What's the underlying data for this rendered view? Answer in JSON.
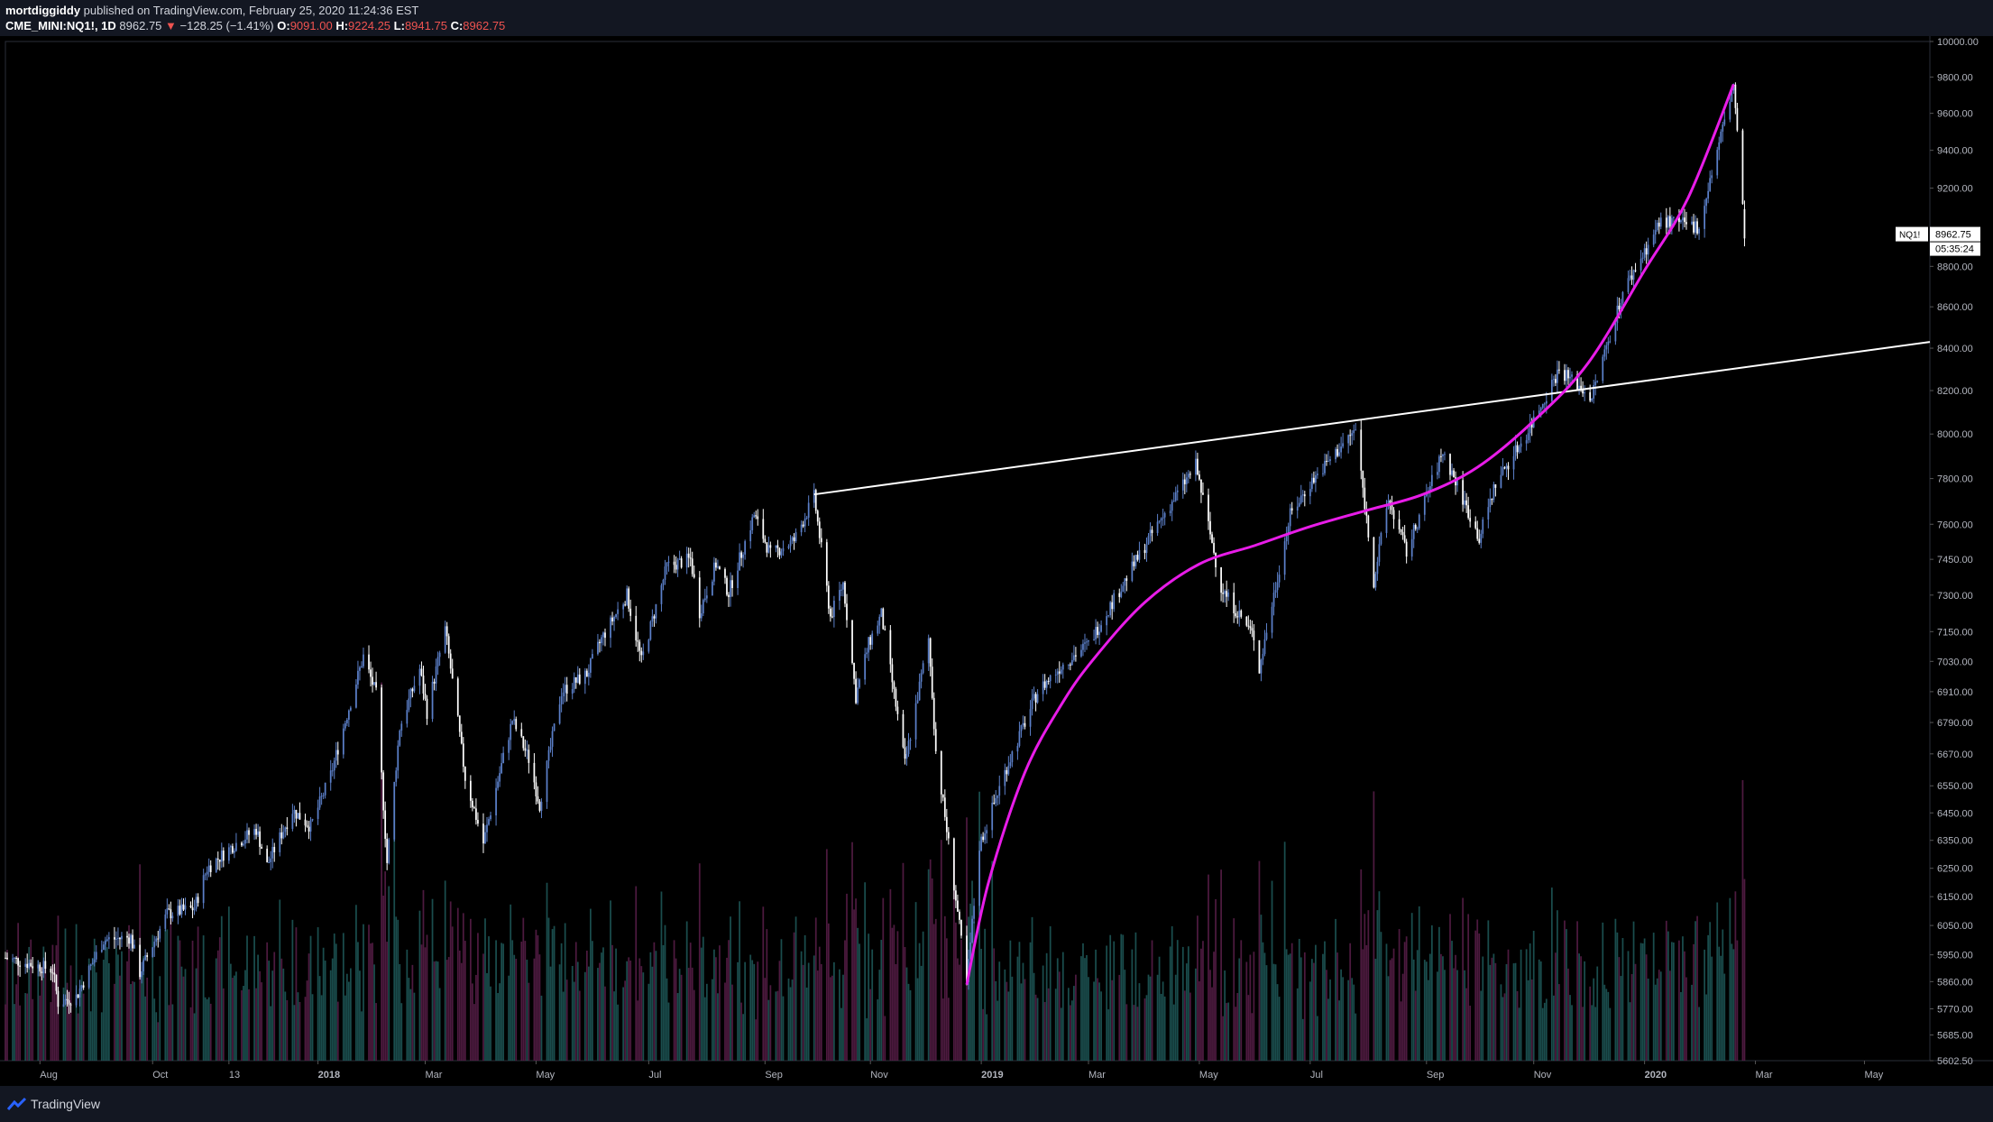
{
  "header": {
    "author": "mortdiggiddy",
    "published_text": "published on TradingView.com, February 25, 2020 11:24:36 EST",
    "symbol": "CME_MINI:NQ1!, 1D",
    "last": "8962.75",
    "down_arrow": "▼",
    "change": "−128.25 (−1.41%)",
    "open_label": "O:",
    "open": "9091.00",
    "high_label": "H:",
    "high": "9224.25",
    "low_label": "L:",
    "low": "8941.75",
    "close_label": "C:",
    "close": "8962.75"
  },
  "footer": {
    "brand": "TradingView",
    "logo_icon": "tradingview-logo-icon"
  },
  "price_marker": {
    "symbol": "NQ1!",
    "price": "8962.75",
    "countdown": "05:35:24"
  },
  "colors": {
    "background": "#000000",
    "candle_up": "#5b7fc8",
    "candle_down": "#ffffff",
    "trendline": "#ffffff",
    "curve": "#e81ce8",
    "volume_up": "#1f5a5a",
    "volume_down": "#5a1f4a"
  },
  "chart_data": {
    "type": "candlestick",
    "title": "CME_MINI:NQ1!, 1D",
    "y_scale": "log",
    "ylim": [
      5602.5,
      10000
    ],
    "y_ticks": [
      10000,
      9800,
      9600,
      9400,
      9200,
      8800,
      8600,
      8400,
      8200,
      8000,
      7800,
      7600,
      7450,
      7300,
      7150,
      7030,
      6910,
      6790,
      6670,
      6550,
      6450,
      6350,
      6250,
      6150,
      6050,
      5950,
      5860,
      5770,
      5685,
      5602.5
    ],
    "y_tick_labels": [
      "10000.00",
      "9800.00",
      "9600.00",
      "9400.00",
      "9200.00",
      "8800.00",
      "8600.00",
      "8400.00",
      "8200.00",
      "8000.00",
      "7800.00",
      "7600.00",
      "7450.00",
      "7300.00",
      "7150.00",
      "7030.00",
      "6910.00",
      "6790.00",
      "6670.00",
      "6550.00",
      "6450.00",
      "6350.00",
      "6250.00",
      "6150.00",
      "6050.00",
      "5950.00",
      "5860.00",
      "5770.00",
      "5685.00",
      "5602.50"
    ],
    "x_ticks": [
      {
        "label": "Aug",
        "date": "2017-08-01"
      },
      {
        "label": "Oct",
        "date": "2017-10-02"
      },
      {
        "label": "13",
        "date": "2017-11-13"
      },
      {
        "label": "2018",
        "date": "2018-01-01"
      },
      {
        "label": "Mar",
        "date": "2018-03-01"
      },
      {
        "label": "May",
        "date": "2018-05-01"
      },
      {
        "label": "Jul",
        "date": "2018-07-02"
      },
      {
        "label": "Sep",
        "date": "2018-09-04"
      },
      {
        "label": "Nov",
        "date": "2018-11-01"
      },
      {
        "label": "2019",
        "date": "2019-01-01"
      },
      {
        "label": "Mar",
        "date": "2019-03-01"
      },
      {
        "label": "May",
        "date": "2019-05-01"
      },
      {
        "label": "Jul",
        "date": "2019-07-01"
      },
      {
        "label": "Sep",
        "date": "2019-09-03"
      },
      {
        "label": "Nov",
        "date": "2019-11-01"
      },
      {
        "label": "2020",
        "date": "2020-01-01"
      },
      {
        "label": "Mar",
        "date": "2020-03-02"
      },
      {
        "label": "May",
        "date": "2020-05-01"
      }
    ],
    "x_range": [
      "2017-07-13",
      "2020-06-06"
    ],
    "price_path": [
      {
        "date": "2017-07-13",
        "close": 5940
      },
      {
        "date": "2017-08-08",
        "close": 5900
      },
      {
        "date": "2017-08-11",
        "close": 5790
      },
      {
        "date": "2017-08-21",
        "close": 5810
      },
      {
        "date": "2017-09-05",
        "close": 6000
      },
      {
        "date": "2017-09-20",
        "close": 6010
      },
      {
        "date": "2017-09-25",
        "close": 5890
      },
      {
        "date": "2017-10-10",
        "close": 6090
      },
      {
        "date": "2017-10-25",
        "close": 6110
      },
      {
        "date": "2017-11-01",
        "close": 6250
      },
      {
        "date": "2017-11-15",
        "close": 6330
      },
      {
        "date": "2017-11-28",
        "close": 6390
      },
      {
        "date": "2017-12-04",
        "close": 6260
      },
      {
        "date": "2017-12-18",
        "close": 6460
      },
      {
        "date": "2017-12-28",
        "close": 6400
      },
      {
        "date": "2018-01-08",
        "close": 6590
      },
      {
        "date": "2018-01-17",
        "close": 6820
      },
      {
        "date": "2018-01-26",
        "close": 7050
      },
      {
        "date": "2018-02-02",
        "close": 6900
      },
      {
        "date": "2018-02-08",
        "close": 6270
      },
      {
        "date": "2018-02-15",
        "close": 6770
      },
      {
        "date": "2018-02-26",
        "close": 7000
      },
      {
        "date": "2018-03-02",
        "close": 6830
      },
      {
        "date": "2018-03-12",
        "close": 7160
      },
      {
        "date": "2018-03-23",
        "close": 6580
      },
      {
        "date": "2018-04-02",
        "close": 6340
      },
      {
        "date": "2018-04-18",
        "close": 6800
      },
      {
        "date": "2018-04-27",
        "close": 6650
      },
      {
        "date": "2018-05-03",
        "close": 6480
      },
      {
        "date": "2018-05-15",
        "close": 6910
      },
      {
        "date": "2018-05-29",
        "close": 6980
      },
      {
        "date": "2018-06-06",
        "close": 7120
      },
      {
        "date": "2018-06-20",
        "close": 7300
      },
      {
        "date": "2018-06-28",
        "close": 7030
      },
      {
        "date": "2018-07-12",
        "close": 7420
      },
      {
        "date": "2018-07-25",
        "close": 7450
      },
      {
        "date": "2018-07-30",
        "close": 7230
      },
      {
        "date": "2018-08-08",
        "close": 7430
      },
      {
        "date": "2018-08-15",
        "close": 7310
      },
      {
        "date": "2018-08-29",
        "close": 7640
      },
      {
        "date": "2018-09-07",
        "close": 7470
      },
      {
        "date": "2018-09-20",
        "close": 7530
      },
      {
        "date": "2018-10-01",
        "close": 7720
      },
      {
        "date": "2018-10-10",
        "close": 7210
      },
      {
        "date": "2018-10-17",
        "close": 7350
      },
      {
        "date": "2018-10-24",
        "close": 6890
      },
      {
        "date": "2018-10-31",
        "close": 7100
      },
      {
        "date": "2018-11-07",
        "close": 7220
      },
      {
        "date": "2018-11-20",
        "close": 6630
      },
      {
        "date": "2018-12-03",
        "close": 7120
      },
      {
        "date": "2018-12-07",
        "close": 6680
      },
      {
        "date": "2018-12-24",
        "close": 5850
      },
      {
        "date": "2018-12-31",
        "close": 6330
      },
      {
        "date": "2019-01-15",
        "close": 6620
      },
      {
        "date": "2019-02-01",
        "close": 6910
      },
      {
        "date": "2019-02-15",
        "close": 7020
      },
      {
        "date": "2019-03-01",
        "close": 7100
      },
      {
        "date": "2019-03-21",
        "close": 7360
      },
      {
        "date": "2019-04-05",
        "close": 7560
      },
      {
        "date": "2019-04-29",
        "close": 7860
      },
      {
        "date": "2019-05-13",
        "close": 7330
      },
      {
        "date": "2019-05-31",
        "close": 7130
      },
      {
        "date": "2019-06-03",
        "close": 7000
      },
      {
        "date": "2019-06-20",
        "close": 7640
      },
      {
        "date": "2019-07-01",
        "close": 7780
      },
      {
        "date": "2019-07-26",
        "close": 8020
      },
      {
        "date": "2019-08-05",
        "close": 7360
      },
      {
        "date": "2019-08-13",
        "close": 7710
      },
      {
        "date": "2019-08-23",
        "close": 7480
      },
      {
        "date": "2019-09-12",
        "close": 7920
      },
      {
        "date": "2019-10-02",
        "close": 7540
      },
      {
        "date": "2019-10-11",
        "close": 7780
      },
      {
        "date": "2019-10-28",
        "close": 8000
      },
      {
        "date": "2019-11-15",
        "close": 8300
      },
      {
        "date": "2019-12-03",
        "close": 8170
      },
      {
        "date": "2019-12-20",
        "close": 8670
      },
      {
        "date": "2020-01-10",
        "close": 9030
      },
      {
        "date": "2020-01-31",
        "close": 9000
      },
      {
        "date": "2020-02-19",
        "close": 9760
      },
      {
        "date": "2020-02-24",
        "close": 9090
      },
      {
        "date": "2020-02-25",
        "close": 8962.75
      }
    ],
    "overlays": [
      {
        "type": "trendline",
        "color": "#ffffff",
        "points": [
          {
            "date": "2018-10-01",
            "price": 7730
          },
          {
            "date": "2020-06-06",
            "price": 8430
          }
        ]
      },
      {
        "type": "curve",
        "color": "#e81ce8",
        "points": [
          {
            "date": "2018-12-24",
            "price": 5850
          },
          {
            "date": "2019-01-05",
            "price": 6200
          },
          {
            "date": "2019-01-25",
            "price": 6600
          },
          {
            "date": "2019-02-15",
            "price": 6870
          },
          {
            "date": "2019-03-05",
            "price": 7050
          },
          {
            "date": "2019-04-01",
            "price": 7270
          },
          {
            "date": "2019-05-01",
            "price": 7430
          },
          {
            "date": "2019-06-01",
            "price": 7510
          },
          {
            "date": "2019-07-01",
            "price": 7590
          },
          {
            "date": "2019-08-01",
            "price": 7660
          },
          {
            "date": "2019-09-01",
            "price": 7730
          },
          {
            "date": "2019-10-01",
            "price": 7850
          },
          {
            "date": "2019-11-01",
            "price": 8060
          },
          {
            "date": "2019-12-01",
            "price": 8330
          },
          {
            "date": "2020-01-01",
            "price": 8780
          },
          {
            "date": "2020-01-25",
            "price": 9150
          },
          {
            "date": "2020-02-19",
            "price": 9760
          }
        ]
      }
    ]
  }
}
